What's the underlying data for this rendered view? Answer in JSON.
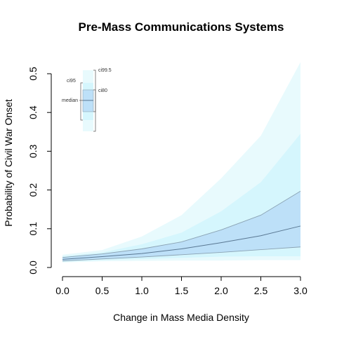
{
  "chart_data": {
    "type": "area",
    "title": "Pre-Mass Communications Systems",
    "xlabel": "Change in Mass Media Density",
    "ylabel": "Probability of Civil War Onset",
    "xlim": [
      0,
      3
    ],
    "ylim": [
      0,
      0.5
    ],
    "xticks": [
      "0.0",
      "0.5",
      "1.0",
      "1.5",
      "2.0",
      "2.5",
      "3.0"
    ],
    "yticks": [
      "0.0",
      "0.1",
      "0.2",
      "0.3",
      "0.4",
      "0.5"
    ],
    "x": [
      0,
      0.5,
      1.0,
      1.5,
      2.0,
      2.5,
      3.0
    ],
    "series": {
      "median": [
        0.021,
        0.028,
        0.036,
        0.048,
        0.064,
        0.082,
        0.107
      ],
      "ci95_lower": [
        0.017,
        0.022,
        0.027,
        0.033,
        0.039,
        0.046,
        0.053
      ],
      "ci95_upper": [
        0.026,
        0.035,
        0.048,
        0.066,
        0.097,
        0.135,
        0.197
      ],
      "ci80_lower": [
        0.015,
        0.019,
        0.022,
        0.025,
        0.028,
        0.029,
        0.029
      ],
      "ci80_upper": [
        0.029,
        0.039,
        0.06,
        0.09,
        0.145,
        0.22,
        0.345
      ],
      "ci99_5_lower": [
        0.013,
        0.016,
        0.017,
        0.018,
        0.018,
        0.019,
        0.019
      ],
      "ci99_5_upper": [
        0.033,
        0.045,
        0.08,
        0.135,
        0.23,
        0.34,
        0.53
      ]
    },
    "legend": {
      "labels": {
        "ci99_5": "ci99.5",
        "ci95": "ci95",
        "ci80": "ci80",
        "median": "median"
      },
      "placement": "top-left"
    },
    "colors": {
      "ci99_5": "#e8fafd",
      "ci80": "#d5f6fd",
      "ci95": "#bde0f8",
      "median_line": "#5a7893",
      "bound_line": "#8aa2b3"
    },
    "grid": false
  }
}
